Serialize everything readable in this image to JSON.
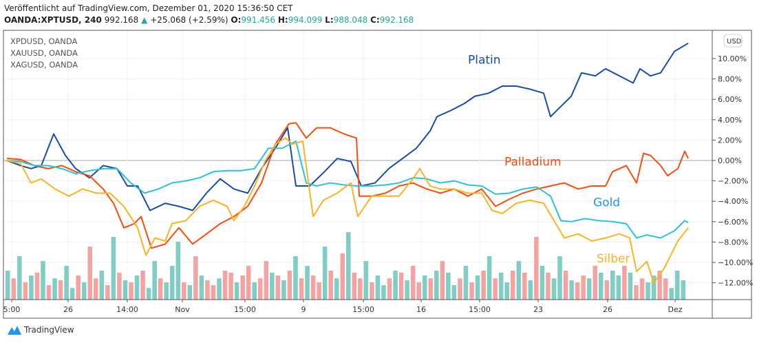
{
  "header": {
    "published": "Veröffentlicht auf TradingView.com, Dezember 01, 2020 15:36:50 CET",
    "symbol": "OANDA:XPTUSD, 240",
    "price": "992.168",
    "change": "+25.068 (+2.59%)",
    "o_label": "O:",
    "o": "991.456",
    "h_label": "H:",
    "h": "994.099",
    "l_label": "L:",
    "l": "988.048",
    "c_label": "C:",
    "c": "992.168"
  },
  "legend": [
    "XPDUSD, OANDA",
    "XAUUSD, OANDA",
    "XAGUSD, OANDA"
  ],
  "currency_button": "USD",
  "brand": "TradingView",
  "chart_data": {
    "type": "line",
    "ylabel": "%",
    "ylim": [
      -13.5,
      13
    ],
    "yticks": [
      10,
      8,
      6,
      4,
      2,
      0,
      -2,
      -4,
      -6,
      -8,
      -10,
      -12
    ],
    "ytick_labels": [
      "10.00%",
      "8.00%",
      "6.00%",
      "4.00%",
      "2.00%",
      "0.00%",
      "−2.00%",
      "−4.00%",
      "−6.00%",
      "−8.00%",
      "−10.00%",
      "−12.00%"
    ],
    "xlim": [
      -0.5,
      102.5
    ],
    "xticks": [
      {
        "t": 0.7,
        "label": "5:00"
      },
      {
        "t": 8.9,
        "label": "26"
      },
      {
        "t": 17.5,
        "label": "14:00"
      },
      {
        "t": 25.5,
        "label": "Nov"
      },
      {
        "t": 34.6,
        "label": "15:00"
      },
      {
        "t": 43.1,
        "label": "9"
      },
      {
        "t": 51.8,
        "label": "15:00"
      },
      {
        "t": 60.2,
        "label": "16"
      },
      {
        "t": 68.7,
        "label": "15:00"
      },
      {
        "t": 77.2,
        "label": "23"
      },
      {
        "t": 87.3,
        "label": "26"
      },
      {
        "t": 97.1,
        "label": "Dez"
      }
    ],
    "series": [
      {
        "name": "Platin",
        "color": "#1a4aa8",
        "label_color": "#1a4aa8",
        "label_at": [
          67,
          9.5
        ],
        "points": [
          [
            0,
            0
          ],
          [
            2,
            -0.5
          ],
          [
            3.5,
            -0.8
          ],
          [
            5,
            -0.5
          ],
          [
            6.8,
            2.6
          ],
          [
            8.5,
            0.5
          ],
          [
            10,
            -0.8
          ],
          [
            12,
            -1.7
          ],
          [
            14,
            -0.5
          ],
          [
            16,
            -0.8
          ],
          [
            17.5,
            -2.5
          ],
          [
            19,
            -2.5
          ],
          [
            20.8,
            -4.9
          ],
          [
            23,
            -4.2
          ],
          [
            25,
            -4.5
          ],
          [
            27,
            -4.9
          ],
          [
            29,
            -3.2
          ],
          [
            31,
            -1.8
          ],
          [
            33,
            -2.8
          ],
          [
            35,
            -3.2
          ],
          [
            37,
            -0.8
          ],
          [
            39,
            1.2
          ],
          [
            40.8,
            3.2
          ],
          [
            42,
            -2.5
          ],
          [
            44,
            -2.5
          ],
          [
            46,
            -1.2
          ],
          [
            48,
            0.2
          ],
          [
            50,
            -0.1
          ],
          [
            51.5,
            -2.5
          ],
          [
            53.5,
            -2.2
          ],
          [
            55.5,
            -0.8
          ],
          [
            57.5,
            0.2
          ],
          [
            59.5,
            1.2
          ],
          [
            61.5,
            2.9
          ],
          [
            62.5,
            4.3
          ],
          [
            64.5,
            4.9
          ],
          [
            66.5,
            5.6
          ],
          [
            68,
            6.3
          ],
          [
            70,
            6.6
          ],
          [
            72,
            7.3
          ],
          [
            74,
            7.3
          ],
          [
            76,
            7.0
          ],
          [
            78,
            6.6
          ],
          [
            79,
            4.3
          ],
          [
            80.5,
            5.3
          ],
          [
            82,
            6.3
          ],
          [
            83.5,
            8.6
          ],
          [
            85.5,
            8.3
          ],
          [
            87,
            9.0
          ],
          [
            89,
            8.3
          ],
          [
            91,
            7.6
          ],
          [
            92,
            9.0
          ],
          [
            93.5,
            8.3
          ],
          [
            95,
            8.6
          ],
          [
            97,
            10.7
          ],
          [
            99,
            11.5
          ]
        ]
      },
      {
        "name": "Palladium",
        "color": "#ff4a0a",
        "label_color": "#ff4a0a",
        "label_at": [
          72.3,
          -0.5
        ],
        "points": [
          [
            0,
            0.2
          ],
          [
            2,
            0.1
          ],
          [
            4,
            -0.5
          ],
          [
            6,
            -0.8
          ],
          [
            8,
            -0.5
          ],
          [
            10,
            -1.1
          ],
          [
            12,
            -1.5
          ],
          [
            14,
            -2.8
          ],
          [
            15.5,
            -4.2
          ],
          [
            17,
            -6.6
          ],
          [
            18.5,
            -6.2
          ],
          [
            19.5,
            -5.5
          ],
          [
            21,
            -8.6
          ],
          [
            23,
            -8.2
          ],
          [
            25,
            -6.6
          ],
          [
            27,
            -8.2
          ],
          [
            29,
            -7.2
          ],
          [
            31,
            -6.2
          ],
          [
            33,
            -5.5
          ],
          [
            35,
            -4.5
          ],
          [
            37,
            -2.2
          ],
          [
            39,
            1.6
          ],
          [
            41,
            3.6
          ],
          [
            42,
            3.7
          ],
          [
            43.5,
            2.2
          ],
          [
            45,
            3.2
          ],
          [
            47,
            3.2
          ],
          [
            49,
            2.6
          ],
          [
            50.8,
            2.2
          ],
          [
            51.2,
            -3.5
          ],
          [
            53,
            -3.5
          ],
          [
            55,
            -3.2
          ],
          [
            57,
            -2.5
          ],
          [
            59,
            -2.2
          ],
          [
            61,
            -2.8
          ],
          [
            63,
            -3.2
          ],
          [
            65,
            -2.8
          ],
          [
            67,
            -3.5
          ],
          [
            69,
            -2.8
          ],
          [
            71,
            -4.5
          ],
          [
            73,
            -3.8
          ],
          [
            75,
            -3.2
          ],
          [
            77,
            -2.8
          ],
          [
            79,
            -2.5
          ],
          [
            81,
            -2.2
          ],
          [
            83,
            -2.8
          ],
          [
            85,
            -2.5
          ],
          [
            87,
            -2.5
          ],
          [
            88,
            -1.1
          ],
          [
            90,
            -0.5
          ],
          [
            91.5,
            -2.2
          ],
          [
            92.5,
            0.7
          ],
          [
            93.5,
            0.5
          ],
          [
            95,
            -0.5
          ],
          [
            96,
            -1.5
          ],
          [
            97.5,
            -0.8
          ],
          [
            98.5,
            0.9
          ],
          [
            99,
            0.2
          ]
        ]
      },
      {
        "name": "Gold",
        "color": "#28c3d8",
        "label_color": "#2196f3",
        "label_at": [
          85.2,
          -4.5
        ],
        "points": [
          [
            0,
            0
          ],
          [
            2,
            -0.1
          ],
          [
            4,
            -0.5
          ],
          [
            6,
            -0.5
          ],
          [
            8,
            -0.8
          ],
          [
            10,
            -1.3
          ],
          [
            12,
            -1.0
          ],
          [
            14,
            -0.8
          ],
          [
            16,
            -0.8
          ],
          [
            18,
            -2.2
          ],
          [
            20,
            -3.2
          ],
          [
            22,
            -2.8
          ],
          [
            24,
            -2.2
          ],
          [
            26,
            -2.0
          ],
          [
            28,
            -1.7
          ],
          [
            30,
            -1.1
          ],
          [
            32,
            -1.0
          ],
          [
            34,
            -1.0
          ],
          [
            36,
            -0.8
          ],
          [
            38,
            1.2
          ],
          [
            40,
            1.2
          ],
          [
            42,
            1.9
          ],
          [
            43.5,
            -2.2
          ],
          [
            45,
            -2.5
          ],
          [
            47,
            -2.2
          ],
          [
            49,
            -2.4
          ],
          [
            51,
            -2.5
          ],
          [
            53,
            -2.5
          ],
          [
            55,
            -2.4
          ],
          [
            57,
            -2.2
          ],
          [
            59,
            -1.7
          ],
          [
            61,
            -1.8
          ],
          [
            63,
            -2.2
          ],
          [
            65,
            -2.0
          ],
          [
            67,
            -2.4
          ],
          [
            69,
            -2.5
          ],
          [
            71,
            -3.3
          ],
          [
            73,
            -3.2
          ],
          [
            75,
            -2.8
          ],
          [
            77,
            -2.6
          ],
          [
            79,
            -3.5
          ],
          [
            80.5,
            -5.9
          ],
          [
            82,
            -6.0
          ],
          [
            84,
            -5.7
          ],
          [
            86,
            -5.9
          ],
          [
            88,
            -6.0
          ],
          [
            90,
            -6.2
          ],
          [
            91.5,
            -7.6
          ],
          [
            93,
            -7.3
          ],
          [
            95,
            -7.6
          ],
          [
            97,
            -6.9
          ],
          [
            98.5,
            -5.9
          ],
          [
            99,
            -6.1
          ]
        ]
      },
      {
        "name": "Silber",
        "color": "#fbb321",
        "label_color": "#fbb321",
        "label_at": [
          85.7,
          -10.0
        ],
        "points": [
          [
            0,
            0
          ],
          [
            2,
            -0.3
          ],
          [
            3.5,
            -2.2
          ],
          [
            5,
            -1.8
          ],
          [
            7,
            -2.8
          ],
          [
            9,
            -3.5
          ],
          [
            11,
            -2.8
          ],
          [
            13,
            -3.2
          ],
          [
            15,
            -3.2
          ],
          [
            17,
            -4.5
          ],
          [
            19,
            -6.6
          ],
          [
            20.2,
            -9.3
          ],
          [
            21.5,
            -7.6
          ],
          [
            23,
            -7.9
          ],
          [
            24,
            -6.2
          ],
          [
            26,
            -5.9
          ],
          [
            28,
            -4.5
          ],
          [
            30,
            -3.9
          ],
          [
            32,
            -4.5
          ],
          [
            33,
            -5.9
          ],
          [
            34.5,
            -4.5
          ],
          [
            36,
            -2.5
          ],
          [
            37.5,
            -0.1
          ],
          [
            39,
            1.6
          ],
          [
            40.5,
            2.2
          ],
          [
            41.5,
            1.6
          ],
          [
            43,
            1.9
          ],
          [
            44.5,
            -5.5
          ],
          [
            46,
            -3.9
          ],
          [
            48,
            -3.2
          ],
          [
            50,
            -2.2
          ],
          [
            51,
            -5.5
          ],
          [
            53,
            -3.5
          ],
          [
            55,
            -3.5
          ],
          [
            57,
            -3.5
          ],
          [
            59,
            -1.8
          ],
          [
            60,
            -0.8
          ],
          [
            61.5,
            -2.5
          ],
          [
            63,
            -2.8
          ],
          [
            65,
            -2.8
          ],
          [
            67,
            -3.2
          ],
          [
            69,
            -3.2
          ],
          [
            70.5,
            -4.9
          ],
          [
            72,
            -5.2
          ],
          [
            74,
            -4.2
          ],
          [
            76,
            -3.9
          ],
          [
            78,
            -4.2
          ],
          [
            79.5,
            -5.9
          ],
          [
            81,
            -7.6
          ],
          [
            83,
            -7.2
          ],
          [
            85,
            -7.9
          ],
          [
            87,
            -7.6
          ],
          [
            89,
            -7.2
          ],
          [
            90.5,
            -7.6
          ],
          [
            91.5,
            -10.9
          ],
          [
            93,
            -9.9
          ],
          [
            94,
            -12.0
          ],
          [
            95.5,
            -10.6
          ],
          [
            97.5,
            -7.9
          ],
          [
            99,
            -6.6
          ]
        ]
      }
    ],
    "volume": {
      "up_color": "#7fcdc4",
      "down_color": "#f4a3a3",
      "values": [
        30,
        22,
        45,
        18,
        25,
        28,
        40,
        15,
        22,
        20,
        35,
        12,
        25,
        18,
        55,
        22,
        30,
        15,
        65,
        28,
        20,
        18,
        25,
        30,
        12,
        40,
        22,
        18,
        35,
        60,
        18,
        15,
        45,
        25,
        20,
        15,
        22,
        30,
        28,
        18,
        25,
        35,
        18,
        22,
        40,
        28,
        25,
        20,
        30,
        45,
        22,
        35,
        25,
        18,
        55,
        30,
        22,
        48,
        70,
        28,
        22,
        40,
        18,
        25,
        15,
        22,
        30,
        28,
        20,
        35,
        18,
        25,
        22,
        30,
        40,
        28,
        15,
        22,
        35,
        18,
        25,
        30,
        45,
        22,
        28,
        18,
        30,
        40,
        28,
        20,
        65,
        35,
        28,
        22,
        45,
        30,
        20,
        18,
        25,
        22,
        35,
        28,
        20,
        30,
        25,
        35,
        28,
        15,
        22,
        18,
        25,
        30,
        22,
        12,
        30,
        20
      ],
      "up": [
        1,
        0,
        1,
        0,
        1,
        0,
        1,
        0,
        1,
        0,
        1,
        1,
        0,
        1,
        0,
        0,
        1,
        0,
        1,
        0,
        1,
        0,
        1,
        0,
        1,
        1,
        0,
        1,
        1,
        1,
        0,
        1,
        0,
        1,
        0,
        0,
        1,
        0,
        0,
        1,
        0,
        0,
        1,
        0,
        0,
        1,
        0,
        1,
        0,
        1,
        0,
        1,
        0,
        0,
        1,
        0,
        1,
        0,
        1,
        0,
        0,
        1,
        0,
        1,
        1,
        0,
        1,
        0,
        1,
        0,
        0,
        1,
        0,
        1,
        0,
        1,
        1,
        0,
        1,
        0,
        1,
        0,
        1,
        0,
        1,
        1,
        0,
        1,
        0,
        1,
        0,
        1,
        0,
        1,
        1,
        0,
        1,
        0,
        0,
        1,
        0,
        1,
        0,
        1,
        1,
        0,
        1,
        0,
        0,
        1,
        1,
        0,
        0,
        1,
        1,
        1
      ]
    }
  }
}
